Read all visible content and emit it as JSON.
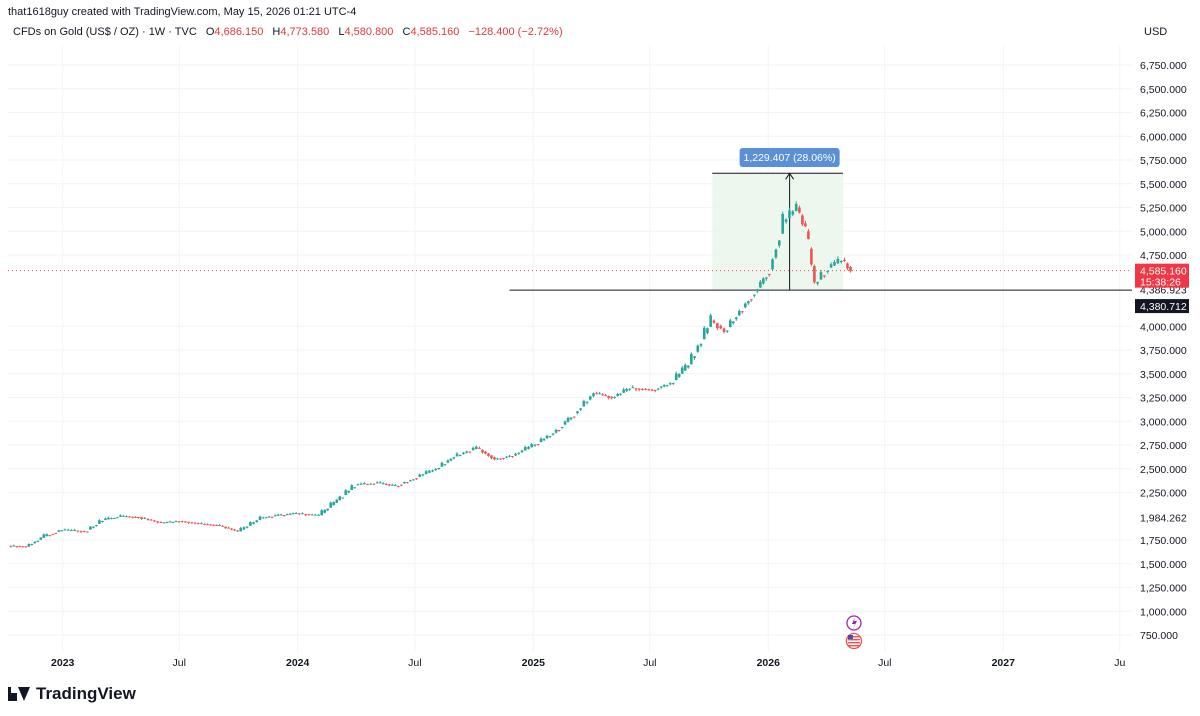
{
  "header": {
    "attribution": "that1618guy created with TradingView.com, May 15, 2026 01:21 UTC-4"
  },
  "legend": {
    "symbol": "CFDs on Gold (US$ / OZ) · 1W · TVC",
    "open_label": "O",
    "open": "4,686.150",
    "high_label": "H",
    "high": "4,773.580",
    "low_label": "L",
    "low": "4,580.800",
    "close_label": "C",
    "close": "4,585.160",
    "change": "−128.400 (−2.72%)"
  },
  "currency": "USD",
  "footer": {
    "brand": "TradingView"
  },
  "colors": {
    "up": "#26a69a",
    "down": "#ef5350",
    "grid": "#f0f3fa",
    "measure_fill": "#e8f5e9",
    "measure_label_bg": "#5b8fd6",
    "price_label_bg": "#f23645",
    "level_label_bg": "#131722"
  },
  "chart_data": {
    "type": "candlestick",
    "title": "",
    "ylim": [
      500,
      7000
    ],
    "y_scale": "linear",
    "y_ticks": [
      "750.000",
      "1,000.000",
      "1,250.000",
      "1,500.000",
      "1,750.000",
      "2,250.000",
      "2,500.000",
      "2,750.000",
      "3,000.000",
      "3,250.000",
      "3,500.000",
      "3,750.000",
      "4,000.000",
      "4,750.000",
      "5,000.000",
      "5,250.000",
      "5,500.000",
      "5,750.000",
      "6,000.000",
      "6,250.000",
      "6,500.000",
      "6,750.000"
    ],
    "y_tick_values": [
      750,
      1000,
      1250,
      1500,
      1750,
      2250,
      2500,
      2750,
      3000,
      3250,
      3500,
      3750,
      4000,
      4750,
      5000,
      5250,
      5500,
      5750,
      6000,
      6250,
      6500,
      6750
    ],
    "x_ticks": [
      "2023",
      "Jul",
      "2024",
      "Jul",
      "2025",
      "Jul",
      "2026",
      "Jul",
      "2027",
      "Ju"
    ],
    "x_tick_dates": [
      "2023-01-01",
      "2023-07-01",
      "2024-01-01",
      "2024-07-01",
      "2025-01-01",
      "2025-07-01",
      "2026-01-01",
      "2026-07-01",
      "2027-01-01",
      "2027-07-01"
    ],
    "x_range": [
      "2022-10-08",
      "2027-07-20"
    ],
    "series_close": [
      [
        "2022-10-10",
        1690
      ],
      [
        "2022-11-07",
        1680
      ],
      [
        "2022-12-05",
        1790
      ],
      [
        "2023-01-02",
        1860
      ],
      [
        "2023-02-06",
        1840
      ],
      [
        "2023-03-06",
        1960
      ],
      [
        "2023-04-03",
        2000
      ],
      [
        "2023-05-01",
        1990
      ],
      [
        "2023-06-05",
        1930
      ],
      [
        "2023-07-03",
        1950
      ],
      [
        "2023-08-07",
        1920
      ],
      [
        "2023-09-04",
        1900
      ],
      [
        "2023-10-02",
        1840
      ],
      [
        "2023-11-06",
        1980
      ],
      [
        "2023-12-04",
        2010
      ],
      [
        "2024-01-01",
        2030
      ],
      [
        "2024-02-05",
        2010
      ],
      [
        "2024-03-04",
        2170
      ],
      [
        "2024-04-01",
        2330
      ],
      [
        "2024-05-06",
        2350
      ],
      [
        "2024-06-03",
        2320
      ],
      [
        "2024-07-01",
        2400
      ],
      [
        "2024-08-05",
        2500
      ],
      [
        "2024-09-02",
        2630
      ],
      [
        "2024-10-07",
        2720
      ],
      [
        "2024-11-04",
        2600
      ],
      [
        "2024-12-02",
        2640
      ],
      [
        "2025-01-06",
        2760
      ],
      [
        "2025-02-03",
        2880
      ],
      [
        "2025-03-03",
        3050
      ],
      [
        "2025-04-07",
        3300
      ],
      [
        "2025-05-05",
        3250
      ],
      [
        "2025-06-02",
        3350
      ],
      [
        "2025-07-07",
        3330
      ],
      [
        "2025-08-04",
        3400
      ],
      [
        "2025-09-01",
        3600
      ],
      [
        "2025-10-06",
        4060
      ],
      [
        "2025-10-27",
        3950
      ],
      [
        "2025-11-24",
        4200
      ],
      [
        "2025-12-22",
        4450
      ],
      [
        "2026-01-05",
        4600
      ],
      [
        "2026-01-26",
        5100
      ],
      [
        "2026-02-16",
        5250
      ],
      [
        "2026-03-02",
        5000
      ],
      [
        "2026-03-16",
        4450
      ],
      [
        "2026-04-06",
        4620
      ],
      [
        "2026-04-27",
        4700
      ],
      [
        "2026-05-11",
        4585.16
      ]
    ],
    "measure": {
      "label": "1,229.407 (28.06%)",
      "from": 4380.712,
      "to": 5610.119,
      "start": "2025-10-06",
      "end": "2026-04-27"
    },
    "horizontal_level": {
      "value": 4380.712,
      "label": "4,380.712",
      "start": "2024-11-25"
    },
    "last_price": {
      "value": 4585.16,
      "label": "4,585.160",
      "countdown": "15:38:26"
    },
    "other_labels": [
      {
        "value": 4386.923,
        "label": "4,386.923"
      },
      {
        "value": 1984.262,
        "label": "1,984.262"
      }
    ],
    "event_icons": [
      {
        "date": "2026-05-11",
        "name": "lightning-icon"
      },
      {
        "date": "2026-05-11",
        "name": "us-flag-icon"
      }
    ]
  }
}
